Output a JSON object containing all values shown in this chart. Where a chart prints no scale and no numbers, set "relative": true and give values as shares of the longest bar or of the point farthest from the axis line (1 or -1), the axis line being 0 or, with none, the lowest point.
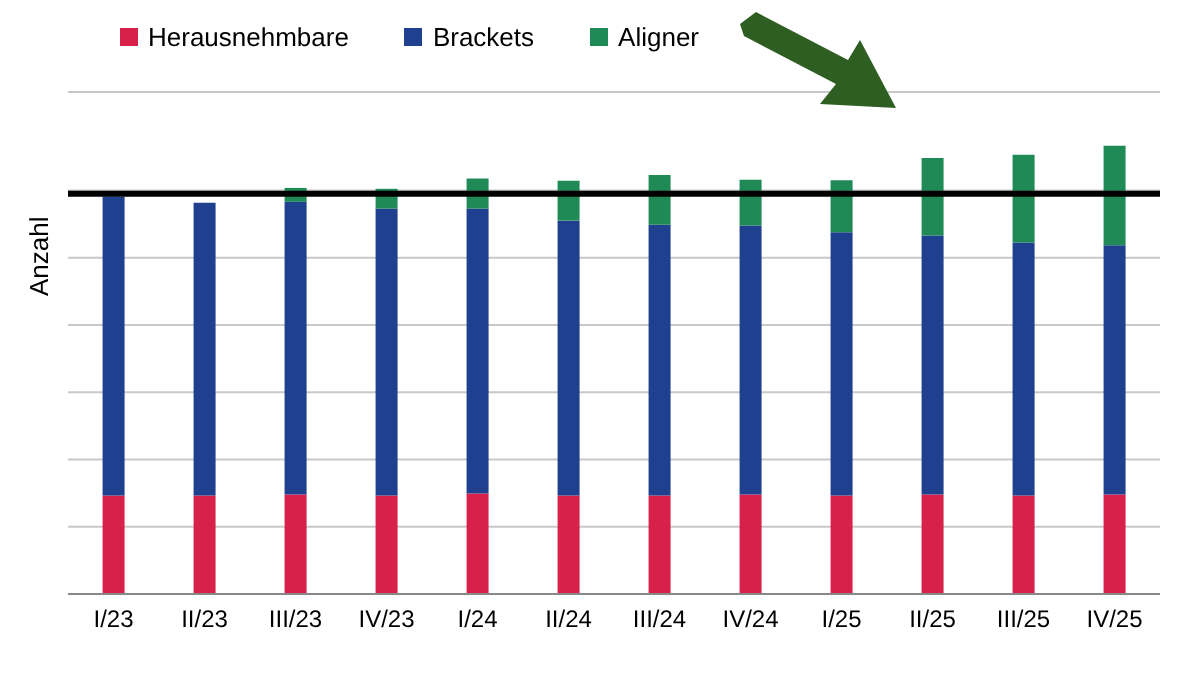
{
  "chart_data": {
    "type": "bar",
    "stacked": true,
    "relative": true,
    "ylabel": "Anzahl",
    "legend": "top left",
    "grid": "y",
    "categories": [
      "I/23",
      "II/23",
      "III/23",
      "IV/23",
      "I/24",
      "II/24",
      "III/24",
      "IV/24",
      "I/25",
      "II/25",
      "III/25",
      "IV/25"
    ],
    "series": [
      {
        "name": "Herausnehmbare",
        "color": "#d8214a",
        "values": [
          0.22,
          0.22,
          0.222,
          0.22,
          0.224,
          0.22,
          0.22,
          0.222,
          0.22,
          0.222,
          0.22,
          0.222
        ]
      },
      {
        "name": "Brackets",
        "color": "#1f3f8f",
        "values": [
          0.667,
          0.653,
          0.653,
          0.64,
          0.636,
          0.613,
          0.604,
          0.6,
          0.587,
          0.578,
          0.564,
          0.556
        ]
      },
      {
        "name": "Aligner",
        "color": "#1f8a55",
        "values": [
          0,
          0,
          0.031,
          0.044,
          0.067,
          0.089,
          0.111,
          0.102,
          0.116,
          0.173,
          0.196,
          0.222
        ]
      }
    ],
    "ref_lines": [
      {
        "axis": "y",
        "value": 0.893,
        "color": "#000000"
      }
    ]
  }
}
